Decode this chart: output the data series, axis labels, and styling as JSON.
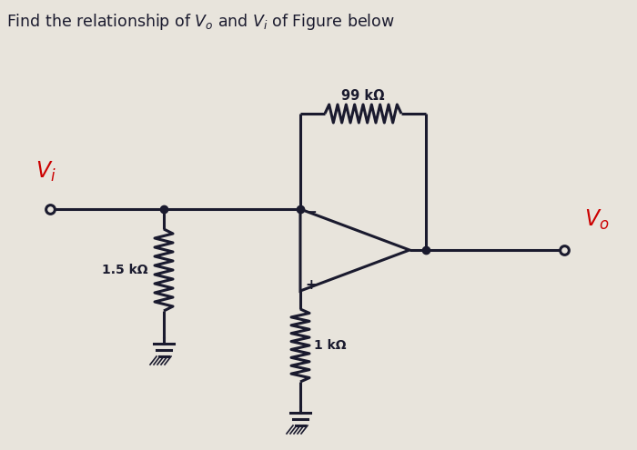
{
  "bg_color": "#e8e4dc",
  "line_color": "#1a1a2e",
  "vi_color": "#cc0000",
  "vo_color": "#cc0000",
  "label_99k": "99 kΩ",
  "label_15k": "1.5 kΩ",
  "label_1k": "1 kΩ"
}
